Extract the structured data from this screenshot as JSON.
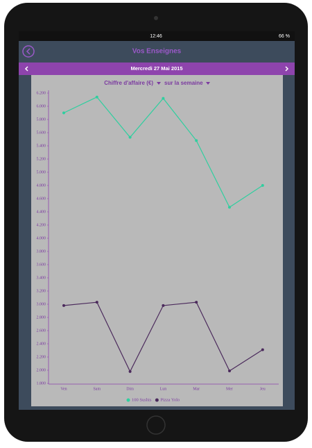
{
  "status_bar": {
    "time": "12:46",
    "battery": "66 %"
  },
  "header": {
    "title": "Vos Enseignes"
  },
  "date_bar": {
    "date": "Mercredi 27 Mai 2015"
  },
  "filters": {
    "metric": "Chiffre d'affaire (€)",
    "period": "sur la semaine"
  },
  "chart_data": {
    "type": "line",
    "categories": [
      "Ven",
      "Sam",
      "Dim",
      "Lun",
      "Mar",
      "Mer",
      "Jeu"
    ],
    "series": [
      {
        "name": "100 Sushis",
        "color": "#2fcf9f",
        "values": [
          5900,
          6140,
          5530,
          6120,
          5480,
          4470,
          4800
        ]
      },
      {
        "name": "Pizza Yolo",
        "color": "#4b2a5c",
        "values": [
          2980,
          3030,
          1980,
          2980,
          3030,
          1990,
          2310
        ]
      }
    ],
    "ylim": [
      1800,
      6200
    ],
    "yticks": [
      {
        "value": 1800,
        "label": "1.800"
      },
      {
        "value": 2000,
        "label": "2.000"
      },
      {
        "value": 2200,
        "label": "2.200"
      },
      {
        "value": 2400,
        "label": "2.400"
      },
      {
        "value": 2600,
        "label": "2.600"
      },
      {
        "value": 2800,
        "label": "2.800"
      },
      {
        "value": 3000,
        "label": "3.000"
      },
      {
        "value": 3200,
        "label": "3.200"
      },
      {
        "value": 3400,
        "label": "3.400"
      },
      {
        "value": 3600,
        "label": "3.600"
      },
      {
        "value": 3800,
        "label": "3.800"
      },
      {
        "value": 4000,
        "label": "4.000"
      },
      {
        "value": 4200,
        "label": "4.200"
      },
      {
        "value": 4400,
        "label": "4.400"
      },
      {
        "value": 4600,
        "label": "4.600"
      },
      {
        "value": 4800,
        "label": "4.800"
      },
      {
        "value": 5000,
        "label": "5.000"
      },
      {
        "value": 5200,
        "label": "5.200"
      },
      {
        "value": 5400,
        "label": "5.400"
      },
      {
        "value": 5600,
        "label": "5.600"
      },
      {
        "value": 5800,
        "label": "5.800"
      },
      {
        "value": 6000,
        "label": "6.000"
      },
      {
        "value": 6200,
        "label": "6.200"
      }
    ],
    "legend": "bottom",
    "grid": false
  }
}
